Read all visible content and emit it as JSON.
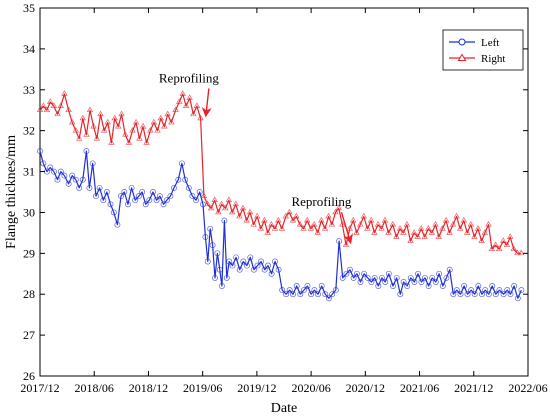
{
  "chart_data": {
    "type": "line",
    "title": "",
    "xlabel": "Date",
    "ylabel": "Flange thicknes/mm",
    "ylim": [
      26,
      35
    ],
    "xlim": [
      "2017-12",
      "2022-06"
    ],
    "x_ticks": [
      "2017/12",
      "2018/06",
      "2018/12",
      "2019/06",
      "2019/12",
      "2020/06",
      "2020/12",
      "2021/06",
      "2021/12",
      "2022/06"
    ],
    "y_ticks": [
      26,
      27,
      28,
      29,
      30,
      31,
      32,
      33,
      34,
      35
    ],
    "grid": false,
    "legend_position": "top-right",
    "series": [
      {
        "name": "Left",
        "color": "#1f2fd6",
        "marker": "circle",
        "points": [
          [
            "2017-12-01",
            31.5
          ],
          [
            "2017-12-12",
            31.2
          ],
          [
            "2017-12-24",
            31.0
          ],
          [
            "2018-01-05",
            31.1
          ],
          [
            "2018-01-17",
            31.0
          ],
          [
            "2018-01-29",
            30.8
          ],
          [
            "2018-02-10",
            31.0
          ],
          [
            "2018-02-22",
            30.9
          ],
          [
            "2018-03-06",
            30.7
          ],
          [
            "2018-03-18",
            30.9
          ],
          [
            "2018-03-30",
            30.8
          ],
          [
            "2018-04-11",
            30.6
          ],
          [
            "2018-04-23",
            30.8
          ],
          [
            "2018-05-05",
            31.5
          ],
          [
            "2018-05-15",
            30.6
          ],
          [
            "2018-05-26",
            31.2
          ],
          [
            "2018-06-07",
            30.4
          ],
          [
            "2018-06-19",
            30.6
          ],
          [
            "2018-07-01",
            30.3
          ],
          [
            "2018-07-13",
            30.5
          ],
          [
            "2018-07-25",
            30.2
          ],
          [
            "2018-08-06",
            30.0
          ],
          [
            "2018-08-18",
            29.7
          ],
          [
            "2018-08-30",
            30.4
          ],
          [
            "2018-09-11",
            30.5
          ],
          [
            "2018-09-23",
            30.2
          ],
          [
            "2018-10-05",
            30.6
          ],
          [
            "2018-10-17",
            30.3
          ],
          [
            "2018-10-29",
            30.4
          ],
          [
            "2018-11-10",
            30.5
          ],
          [
            "2018-11-22",
            30.2
          ],
          [
            "2018-12-04",
            30.3
          ],
          [
            "2018-12-16",
            30.5
          ],
          [
            "2018-12-28",
            30.3
          ],
          [
            "2019-01-09",
            30.4
          ],
          [
            "2019-01-21",
            30.2
          ],
          [
            "2019-02-02",
            30.3
          ],
          [
            "2019-02-14",
            30.4
          ],
          [
            "2019-02-26",
            30.6
          ],
          [
            "2019-03-10",
            30.8
          ],
          [
            "2019-03-22",
            31.2
          ],
          [
            "2019-04-03",
            30.8
          ],
          [
            "2019-04-15",
            30.6
          ],
          [
            "2019-04-27",
            30.4
          ],
          [
            "2019-05-09",
            30.3
          ],
          [
            "2019-05-21",
            30.5
          ],
          [
            "2019-06-02",
            30.2
          ],
          [
            "2019-06-10",
            29.4
          ],
          [
            "2019-06-18",
            28.8
          ],
          [
            "2019-06-26",
            29.6
          ],
          [
            "2019-07-04",
            29.2
          ],
          [
            "2019-07-12",
            28.4
          ],
          [
            "2019-07-20",
            29.0
          ],
          [
            "2019-07-28",
            28.6
          ],
          [
            "2019-08-05",
            28.2
          ],
          [
            "2019-08-13",
            29.8
          ],
          [
            "2019-08-21",
            28.4
          ],
          [
            "2019-08-29",
            28.8
          ],
          [
            "2019-09-10",
            28.7
          ],
          [
            "2019-09-22",
            28.9
          ],
          [
            "2019-10-04",
            28.6
          ],
          [
            "2019-10-16",
            28.8
          ],
          [
            "2019-10-28",
            28.7
          ],
          [
            "2019-11-09",
            28.9
          ],
          [
            "2019-11-21",
            28.6
          ],
          [
            "2019-12-03",
            28.7
          ],
          [
            "2019-12-15",
            28.8
          ],
          [
            "2019-12-27",
            28.6
          ],
          [
            "2020-01-08",
            28.7
          ],
          [
            "2020-01-20",
            28.5
          ],
          [
            "2020-02-01",
            28.8
          ],
          [
            "2020-02-13",
            28.6
          ],
          [
            "2020-02-25",
            28.1
          ],
          [
            "2020-03-08",
            28.0
          ],
          [
            "2020-03-20",
            28.1
          ],
          [
            "2020-04-01",
            28.0
          ],
          [
            "2020-04-13",
            28.2
          ],
          [
            "2020-04-25",
            28.0
          ],
          [
            "2020-05-07",
            28.1
          ],
          [
            "2020-05-19",
            28.2
          ],
          [
            "2020-05-31",
            28.0
          ],
          [
            "2020-06-12",
            28.1
          ],
          [
            "2020-06-24",
            28.0
          ],
          [
            "2020-07-06",
            28.2
          ],
          [
            "2020-07-18",
            28.0
          ],
          [
            "2020-07-30",
            27.9
          ],
          [
            "2020-08-11",
            28.0
          ],
          [
            "2020-08-23",
            28.1
          ],
          [
            "2020-09-04",
            29.3
          ],
          [
            "2020-09-16",
            28.4
          ],
          [
            "2020-09-28",
            28.5
          ],
          [
            "2020-10-10",
            28.6
          ],
          [
            "2020-10-22",
            28.4
          ],
          [
            "2020-11-03",
            28.5
          ],
          [
            "2020-11-15",
            28.3
          ],
          [
            "2020-11-27",
            28.5
          ],
          [
            "2020-12-09",
            28.4
          ],
          [
            "2020-12-21",
            28.3
          ],
          [
            "2021-01-02",
            28.4
          ],
          [
            "2021-01-14",
            28.2
          ],
          [
            "2021-01-26",
            28.4
          ],
          [
            "2021-02-07",
            28.3
          ],
          [
            "2021-02-19",
            28.5
          ],
          [
            "2021-03-03",
            28.2
          ],
          [
            "2021-03-15",
            28.4
          ],
          [
            "2021-03-27",
            28.0
          ],
          [
            "2021-04-08",
            28.3
          ],
          [
            "2021-04-20",
            28.2
          ],
          [
            "2021-05-02",
            28.4
          ],
          [
            "2021-05-14",
            28.3
          ],
          [
            "2021-05-26",
            28.5
          ],
          [
            "2021-06-07",
            28.3
          ],
          [
            "2021-06-19",
            28.4
          ],
          [
            "2021-07-01",
            28.2
          ],
          [
            "2021-07-13",
            28.4
          ],
          [
            "2021-07-25",
            28.3
          ],
          [
            "2021-08-06",
            28.5
          ],
          [
            "2021-08-18",
            28.2
          ],
          [
            "2021-08-30",
            28.4
          ],
          [
            "2021-09-11",
            28.6
          ],
          [
            "2021-09-23",
            28.0
          ],
          [
            "2021-10-05",
            28.1
          ],
          [
            "2021-10-17",
            28.0
          ],
          [
            "2021-10-29",
            28.2
          ],
          [
            "2021-11-10",
            28.0
          ],
          [
            "2021-11-22",
            28.1
          ],
          [
            "2021-12-04",
            28.0
          ],
          [
            "2021-12-16",
            28.2
          ],
          [
            "2021-12-28",
            28.0
          ],
          [
            "2022-01-09",
            28.1
          ],
          [
            "2022-01-21",
            28.0
          ],
          [
            "2022-02-02",
            28.2
          ],
          [
            "2022-02-14",
            28.0
          ],
          [
            "2022-02-26",
            28.1
          ],
          [
            "2022-03-10",
            28.0
          ],
          [
            "2022-03-22",
            28.1
          ],
          [
            "2022-04-03",
            28.0
          ],
          [
            "2022-04-15",
            28.2
          ],
          [
            "2022-04-27",
            27.9
          ],
          [
            "2022-05-09",
            28.1
          ]
        ]
      },
      {
        "name": "Right",
        "color": "#e8232a",
        "marker": "triangle",
        "points": [
          [
            "2017-12-01",
            32.5
          ],
          [
            "2017-12-12",
            32.6
          ],
          [
            "2017-12-24",
            32.5
          ],
          [
            "2018-01-05",
            32.7
          ],
          [
            "2018-01-17",
            32.6
          ],
          [
            "2018-01-29",
            32.4
          ],
          [
            "2018-02-10",
            32.6
          ],
          [
            "2018-02-22",
            32.9
          ],
          [
            "2018-03-06",
            32.5
          ],
          [
            "2018-03-18",
            32.2
          ],
          [
            "2018-03-30",
            32.0
          ],
          [
            "2018-04-11",
            31.8
          ],
          [
            "2018-04-23",
            32.3
          ],
          [
            "2018-05-05",
            31.9
          ],
          [
            "2018-05-17",
            32.5
          ],
          [
            "2018-05-29",
            32.1
          ],
          [
            "2018-06-10",
            31.8
          ],
          [
            "2018-06-22",
            32.4
          ],
          [
            "2018-07-04",
            32.0
          ],
          [
            "2018-07-16",
            32.2
          ],
          [
            "2018-07-28",
            31.7
          ],
          [
            "2018-08-09",
            32.3
          ],
          [
            "2018-08-21",
            32.1
          ],
          [
            "2018-09-02",
            32.4
          ],
          [
            "2018-09-14",
            31.9
          ],
          [
            "2018-09-26",
            31.7
          ],
          [
            "2018-10-08",
            32.0
          ],
          [
            "2018-10-20",
            32.2
          ],
          [
            "2018-11-01",
            31.8
          ],
          [
            "2018-11-13",
            32.1
          ],
          [
            "2018-11-25",
            31.7
          ],
          [
            "2018-12-07",
            32.0
          ],
          [
            "2018-12-19",
            32.2
          ],
          [
            "2018-12-31",
            32.0
          ],
          [
            "2019-01-12",
            32.3
          ],
          [
            "2019-01-24",
            32.1
          ],
          [
            "2019-02-05",
            32.4
          ],
          [
            "2019-02-17",
            32.2
          ],
          [
            "2019-03-01",
            32.5
          ],
          [
            "2019-03-13",
            32.7
          ],
          [
            "2019-03-25",
            32.9
          ],
          [
            "2019-04-06",
            32.6
          ],
          [
            "2019-04-18",
            32.8
          ],
          [
            "2019-04-30",
            32.4
          ],
          [
            "2019-05-12",
            32.6
          ],
          [
            "2019-05-24",
            32.3
          ],
          [
            "2019-06-05",
            30.4
          ],
          [
            "2019-06-17",
            30.2
          ],
          [
            "2019-06-29",
            30.1
          ],
          [
            "2019-07-11",
            30.3
          ],
          [
            "2019-07-23",
            30.0
          ],
          [
            "2019-08-04",
            30.2
          ],
          [
            "2019-08-16",
            30.1
          ],
          [
            "2019-08-28",
            30.3
          ],
          [
            "2019-09-09",
            30.0
          ],
          [
            "2019-09-21",
            30.2
          ],
          [
            "2019-10-03",
            29.9
          ],
          [
            "2019-10-15",
            30.1
          ],
          [
            "2019-10-27",
            29.8
          ],
          [
            "2019-11-08",
            30.0
          ],
          [
            "2019-11-20",
            29.7
          ],
          [
            "2019-12-02",
            29.9
          ],
          [
            "2019-12-14",
            29.6
          ],
          [
            "2019-12-26",
            29.8
          ],
          [
            "2020-01-07",
            29.5
          ],
          [
            "2020-01-19",
            29.7
          ],
          [
            "2020-01-31",
            29.6
          ],
          [
            "2020-02-12",
            29.8
          ],
          [
            "2020-02-24",
            29.6
          ],
          [
            "2020-03-07",
            29.9
          ],
          [
            "2020-03-19",
            30.0
          ],
          [
            "2020-03-31",
            29.8
          ],
          [
            "2020-04-12",
            29.9
          ],
          [
            "2020-04-24",
            29.7
          ],
          [
            "2020-05-06",
            29.6
          ],
          [
            "2020-05-18",
            29.8
          ],
          [
            "2020-05-30",
            29.6
          ],
          [
            "2020-06-11",
            29.7
          ],
          [
            "2020-06-23",
            29.5
          ],
          [
            "2020-07-05",
            29.8
          ],
          [
            "2020-07-17",
            29.6
          ],
          [
            "2020-07-29",
            29.9
          ],
          [
            "2020-08-10",
            29.7
          ],
          [
            "2020-08-22",
            30.0
          ],
          [
            "2020-09-03",
            30.1
          ],
          [
            "2020-09-15",
            29.7
          ],
          [
            "2020-09-27",
            29.2
          ],
          [
            "2020-10-09",
            29.6
          ],
          [
            "2020-10-21",
            29.8
          ],
          [
            "2020-11-02",
            29.5
          ],
          [
            "2020-11-14",
            29.7
          ],
          [
            "2020-11-26",
            29.9
          ],
          [
            "2020-12-08",
            29.6
          ],
          [
            "2020-12-20",
            29.8
          ],
          [
            "2021-01-01",
            29.5
          ],
          [
            "2021-01-13",
            29.7
          ],
          [
            "2021-01-25",
            29.6
          ],
          [
            "2021-02-06",
            29.8
          ],
          [
            "2021-02-18",
            29.5
          ],
          [
            "2021-03-02",
            29.7
          ],
          [
            "2021-03-14",
            29.4
          ],
          [
            "2021-03-26",
            29.6
          ],
          [
            "2021-04-07",
            29.5
          ],
          [
            "2021-04-19",
            29.7
          ],
          [
            "2021-05-01",
            29.3
          ],
          [
            "2021-05-13",
            29.5
          ],
          [
            "2021-05-25",
            29.4
          ],
          [
            "2021-06-06",
            29.6
          ],
          [
            "2021-06-18",
            29.4
          ],
          [
            "2021-06-30",
            29.6
          ],
          [
            "2021-07-12",
            29.5
          ],
          [
            "2021-07-24",
            29.7
          ],
          [
            "2021-08-05",
            29.4
          ],
          [
            "2021-08-17",
            29.6
          ],
          [
            "2021-08-29",
            29.8
          ],
          [
            "2021-09-10",
            29.5
          ],
          [
            "2021-09-22",
            29.7
          ],
          [
            "2021-10-04",
            29.9
          ],
          [
            "2021-10-16",
            29.6
          ],
          [
            "2021-10-28",
            29.8
          ],
          [
            "2021-11-09",
            29.5
          ],
          [
            "2021-11-21",
            29.7
          ],
          [
            "2021-12-03",
            29.4
          ],
          [
            "2021-12-15",
            29.6
          ],
          [
            "2021-12-27",
            29.3
          ],
          [
            "2022-01-08",
            29.5
          ],
          [
            "2022-01-20",
            29.7
          ],
          [
            "2022-02-01",
            29.1
          ],
          [
            "2022-02-13",
            29.2
          ],
          [
            "2022-02-25",
            29.1
          ],
          [
            "2022-03-09",
            29.3
          ],
          [
            "2022-03-21",
            29.2
          ],
          [
            "2022-04-02",
            29.4
          ],
          [
            "2022-04-14",
            29.1
          ],
          [
            "2022-04-26",
            29.0
          ],
          [
            "2022-05-08",
            29.0
          ]
        ]
      }
    ],
    "annotations": [
      {
        "text": "Reprofiling",
        "at": [
          "2019-06-05",
          32.3
        ]
      },
      {
        "text": "Reprofiling",
        "at": [
          "2020-10-05",
          29.2
        ]
      }
    ]
  }
}
